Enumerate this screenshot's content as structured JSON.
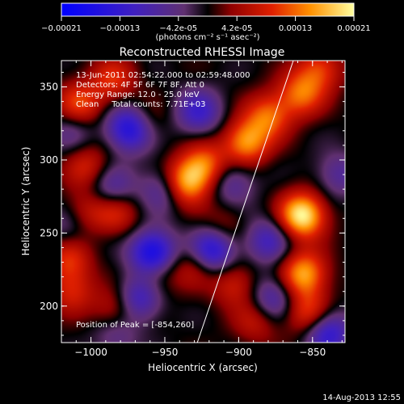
{
  "chart_data": {
    "type": "heatmap",
    "title": "Reconstructed RHESSI Image",
    "xlabel": "Heliocentric X (arcsec)",
    "ylabel": "Heliocentric Y (arcsec)",
    "xlim": [
      -1020,
      -828
    ],
    "ylim": [
      175,
      368
    ],
    "x_ticks": [
      -1000,
      -950,
      -900,
      -850
    ],
    "y_ticks": [
      200,
      250,
      300,
      350
    ],
    "colorbar": {
      "ticks": [
        "-0.00021",
        "-0.00013",
        "-4.2e-05",
        "4.2e-05",
        "0.00013",
        "0.00021"
      ],
      "range": [
        -0.00021,
        0.00021
      ],
      "unit_label": "(photons cm⁻² s⁻¹ asec⁻²)"
    },
    "annotations": [
      "13-Jun-2011 02:54:22.000 to 02:59:48.000",
      "Detectors: 4F 5F 6F 7F 8F, Att 0",
      "Energy Range: 12.0 - 25.0 keV",
      "Clean     Total counts: 7.71E+03"
    ],
    "peak_label": "Position of Peak = [-854,260]",
    "peak": [
      -854,
      260
    ],
    "limb_line": [
      [
        -928,
        175
      ],
      [
        -863,
        368
      ]
    ],
    "sources": [
      {
        "x": -857,
        "y": 262,
        "value": 0.00021
      },
      {
        "x": -856,
        "y": 222,
        "value": 0.00016
      },
      {
        "x": -853,
        "y": 195,
        "value": 0.00011
      },
      {
        "x": -937,
        "y": 284,
        "value": 0.00017
      },
      {
        "x": -923,
        "y": 296,
        "value": 0.00013
      },
      {
        "x": -895,
        "y": 312,
        "value": 0.00015
      },
      {
        "x": -880,
        "y": 330,
        "value": 0.00012
      },
      {
        "x": -858,
        "y": 345,
        "value": 0.00012
      },
      {
        "x": -845,
        "y": 362,
        "value": 0.0001
      },
      {
        "x": -1008,
        "y": 338,
        "value": 0.00011
      },
      {
        "x": -985,
        "y": 355,
        "value": 9e-05
      },
      {
        "x": -965,
        "y": 326,
        "value": 7e-05
      },
      {
        "x": -1003,
        "y": 296,
        "value": 8e-05
      },
      {
        "x": -1005,
        "y": 264,
        "value": 7e-05
      },
      {
        "x": -983,
        "y": 265,
        "value": 9e-05
      },
      {
        "x": -1015,
        "y": 232,
        "value": 9e-05
      },
      {
        "x": -1013,
        "y": 210,
        "value": 8e-05
      },
      {
        "x": -983,
        "y": 198,
        "value": 8e-05
      },
      {
        "x": -955,
        "y": 222,
        "value": 6e-05
      },
      {
        "x": -930,
        "y": 228,
        "value": 7e-05
      },
      {
        "x": -903,
        "y": 215,
        "value": 8e-05
      },
      {
        "x": -888,
        "y": 190,
        "value": 7e-05
      },
      {
        "x": -910,
        "y": 255,
        "value": 5e-05
      },
      {
        "x": -973,
        "y": 322,
        "value": -0.00019
      },
      {
        "x": -958,
        "y": 236,
        "value": -0.00019
      },
      {
        "x": -918,
        "y": 238,
        "value": -0.00016
      },
      {
        "x": -927,
        "y": 333,
        "value": -0.00011
      },
      {
        "x": -950,
        "y": 280,
        "value": -0.0001
      },
      {
        "x": -985,
        "y": 280,
        "value": -9e-05
      },
      {
        "x": -968,
        "y": 205,
        "value": -0.00012
      },
      {
        "x": -905,
        "y": 285,
        "value": -8e-05
      },
      {
        "x": -880,
        "y": 245,
        "value": -0.0001
      },
      {
        "x": -877,
        "y": 205,
        "value": -0.0001
      },
      {
        "x": -840,
        "y": 182,
        "value": -0.00014
      },
      {
        "x": -832,
        "y": 290,
        "value": -7e-05
      },
      {
        "x": -1013,
        "y": 320,
        "value": -6e-05
      },
      {
        "x": -1015,
        "y": 255,
        "value": -6e-05
      },
      {
        "x": -983,
        "y": 180,
        "value": -6e-05
      }
    ]
  },
  "footer": {
    "timestamp": "14-Aug-2013 12:55"
  }
}
